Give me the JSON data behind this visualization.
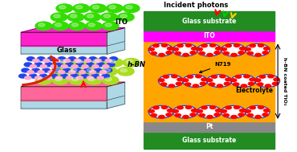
{
  "bg_color": "#ffffff",
  "photon_label": "Incident photons",
  "glass_top_label": "Glass substrate",
  "ito_label": "ITO",
  "electrolyte_label": "Electrolyte",
  "pt_label": "Pt",
  "glass_bot_label": "Glass substrate",
  "side_label": "h-BN coated TiO₂",
  "n719_label": "N719",
  "hbn_label": "h-BN",
  "ito_top_label": "ITO",
  "glass_mid_label": "Glass",
  "colors": {
    "green_balls": "#33dd00",
    "yellow_green_balls": "#aadd22",
    "top_pink": "#ff22cc",
    "bot_pink": "#ff6699",
    "glass_blue": "#add8e6",
    "hbn_blue": "#2244ee",
    "hbn_pink": "#ffaacc",
    "orange_layer": "#FFA500",
    "green_layer": "#228B22",
    "magenta_layer": "#ff00ff",
    "gray_layer": "#888888",
    "particle_white": "#ffffff",
    "particle_border": "#2244bb",
    "red_dot": "#ff0000",
    "arrow_red": "#dd2200",
    "photon_red": "#ff0000",
    "photon_green": "#00cc00",
    "photon_yellow": "#ffcc00"
  }
}
